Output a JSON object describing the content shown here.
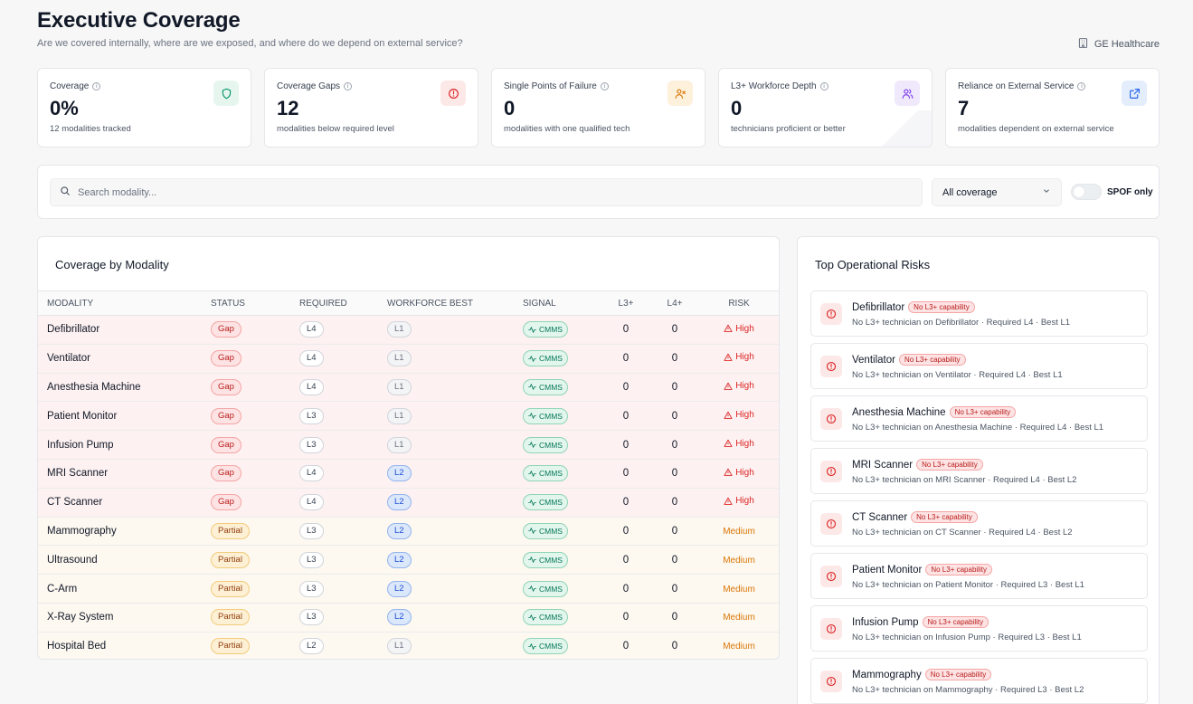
{
  "header": {
    "title": "Executive Coverage",
    "subtitle": "Are we covered internally, where are we exposed, and where do we depend on external service?",
    "org": "GE Healthcare"
  },
  "kpis": [
    {
      "label": "Coverage",
      "value": "0%",
      "desc": "12 modalities tracked",
      "icon": "shield-icon",
      "color": "#059669",
      "bg": "#e6f6ef"
    },
    {
      "label": "Coverage Gaps",
      "value": "12",
      "desc": "modalities below required level",
      "icon": "alert-circle-icon",
      "color": "#dc2626",
      "bg": "#fde8e8"
    },
    {
      "label": "Single Points of Failure",
      "value": "0",
      "desc": "modalities with one qualified tech",
      "icon": "user-x-icon",
      "color": "#d97706",
      "bg": "#fdf1dc"
    },
    {
      "label": "L3+ Workforce Depth",
      "value": "0",
      "desc": "technicians proficient or better",
      "icon": "users-icon",
      "color": "#7c3aed",
      "bg": "#efe9fb"
    },
    {
      "label": "Reliance on External Service",
      "value": "7",
      "desc": "modalities dependent on external service",
      "icon": "external-link-icon",
      "color": "#2563eb",
      "bg": "#e3edfc"
    }
  ],
  "filters": {
    "search_placeholder": "Search modality...",
    "coverage_value": "All coverage",
    "spof_label": "SPOF only"
  },
  "table": {
    "title": "Coverage by Modality",
    "columns": [
      "MODALITY",
      "STATUS",
      "REQUIRED",
      "WORKFORCE BEST",
      "SIGNAL",
      "L3+",
      "L4+",
      "RISK"
    ],
    "rows": [
      {
        "modality": "Defibrillator",
        "status": "Gap",
        "required": "L4",
        "best": "L1",
        "signal": "CMMS",
        "l3": "0",
        "l4": "0",
        "risk": "High"
      },
      {
        "modality": "Ventilator",
        "status": "Gap",
        "required": "L4",
        "best": "L1",
        "signal": "CMMS",
        "l3": "0",
        "l4": "0",
        "risk": "High"
      },
      {
        "modality": "Anesthesia Machine",
        "status": "Gap",
        "required": "L4",
        "best": "L1",
        "signal": "CMMS",
        "l3": "0",
        "l4": "0",
        "risk": "High"
      },
      {
        "modality": "Patient Monitor",
        "status": "Gap",
        "required": "L3",
        "best": "L1",
        "signal": "CMMS",
        "l3": "0",
        "l4": "0",
        "risk": "High"
      },
      {
        "modality": "Infusion Pump",
        "status": "Gap",
        "required": "L3",
        "best": "L1",
        "signal": "CMMS",
        "l3": "0",
        "l4": "0",
        "risk": "High"
      },
      {
        "modality": "MRI Scanner",
        "status": "Gap",
        "required": "L4",
        "best": "L2",
        "signal": "CMMS",
        "l3": "0",
        "l4": "0",
        "risk": "High"
      },
      {
        "modality": "CT Scanner",
        "status": "Gap",
        "required": "L4",
        "best": "L2",
        "signal": "CMMS",
        "l3": "0",
        "l4": "0",
        "risk": "High"
      },
      {
        "modality": "Mammography",
        "status": "Partial",
        "required": "L3",
        "best": "L2",
        "signal": "CMMS",
        "l3": "0",
        "l4": "0",
        "risk": "Medium"
      },
      {
        "modality": "Ultrasound",
        "status": "Partial",
        "required": "L3",
        "best": "L2",
        "signal": "CMMS",
        "l3": "0",
        "l4": "0",
        "risk": "Medium"
      },
      {
        "modality": "C-Arm",
        "status": "Partial",
        "required": "L3",
        "best": "L2",
        "signal": "CMMS",
        "l3": "0",
        "l4": "0",
        "risk": "Medium"
      },
      {
        "modality": "X-Ray System",
        "status": "Partial",
        "required": "L3",
        "best": "L2",
        "signal": "CMMS",
        "l3": "0",
        "l4": "0",
        "risk": "Medium"
      },
      {
        "modality": "Hospital Bed",
        "status": "Partial",
        "required": "L2",
        "best": "L1",
        "signal": "CMMS",
        "l3": "0",
        "l4": "0",
        "risk": "Medium"
      }
    ]
  },
  "risks": {
    "title": "Top Operational Risks",
    "items": [
      {
        "name": "Defibrillator",
        "badge": "No L3+ capability",
        "detail": "No L3+ technician on Defibrillator · Required L4 · Best L1"
      },
      {
        "name": "Ventilator",
        "badge": "No L3+ capability",
        "detail": "No L3+ technician on Ventilator · Required L4 · Best L1"
      },
      {
        "name": "Anesthesia Machine",
        "badge": "No L3+ capability",
        "detail": "No L3+ technician on Anesthesia Machine · Required L4 · Best L1"
      },
      {
        "name": "MRI Scanner",
        "badge": "No L3+ capability",
        "detail": "No L3+ technician on MRI Scanner · Required L4 · Best L2"
      },
      {
        "name": "CT Scanner",
        "badge": "No L3+ capability",
        "detail": "No L3+ technician on CT Scanner · Required L4 · Best L2"
      },
      {
        "name": "Patient Monitor",
        "badge": "No L3+ capability",
        "detail": "No L3+ technician on Patient Monitor · Required L3 · Best L1"
      },
      {
        "name": "Infusion Pump",
        "badge": "No L3+ capability",
        "detail": "No L3+ technician on Infusion Pump · Required L3 · Best L1"
      },
      {
        "name": "Mammography",
        "badge": "No L3+ capability",
        "detail": "No L3+ technician on Mammography · Required L3 · Best L2"
      }
    ]
  }
}
